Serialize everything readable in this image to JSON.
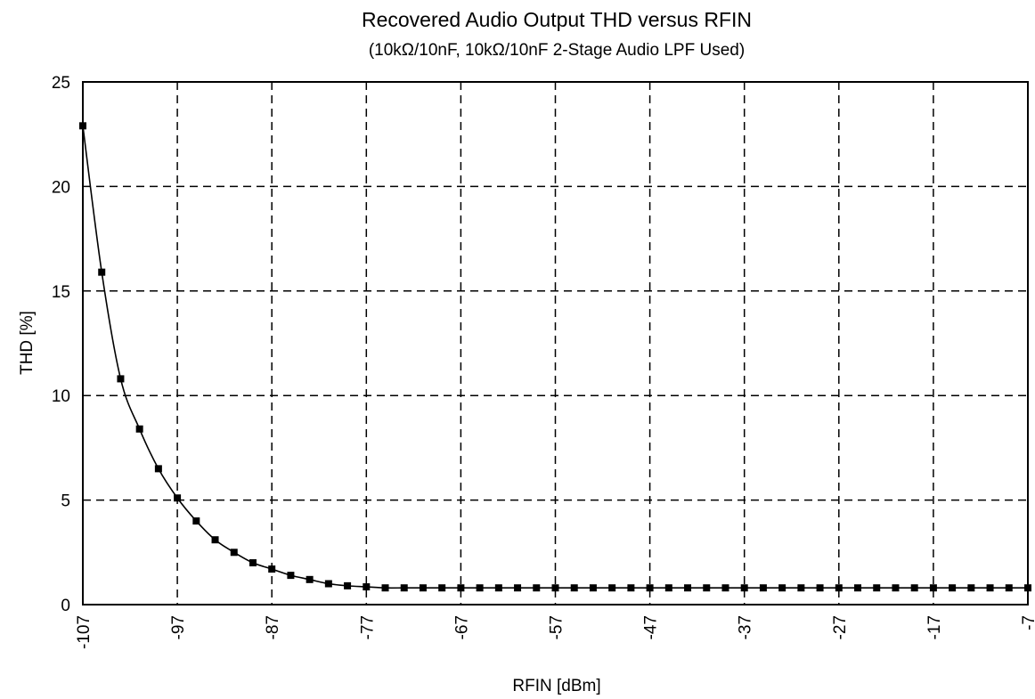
{
  "chart_data": {
    "type": "line",
    "title": "Recovered Audio Output  THD versus RFIN",
    "subtitle": "(10kΩ/10nF, 10kΩ/10nF 2-Stage Audio LPF Used)",
    "xlabel": "RFIN [dBm]",
    "ylabel": "THD [%]",
    "xlim": [
      -107,
      -7
    ],
    "ylim": [
      0,
      25
    ],
    "xticks": [
      -107,
      -97,
      -87,
      -77,
      -67,
      -57,
      -47,
      -37,
      -27,
      -17,
      -7
    ],
    "yticks": [
      0,
      5,
      10,
      15,
      20,
      25
    ],
    "xtick_labels": [
      "-107",
      "-97",
      "-87",
      "-77",
      "-67",
      "-57",
      "-47",
      "-37",
      "-27",
      "-17",
      "-7"
    ],
    "ytick_labels": [
      "0",
      "5",
      "10",
      "15",
      "20",
      "25"
    ],
    "grid": true,
    "legend": "none",
    "series": [
      {
        "x": [
          -107,
          -105,
          -103,
          -101,
          -99,
          -97,
          -95,
          -93,
          -91,
          -89,
          -87,
          -85,
          -83,
          -81,
          -79,
          -77,
          -75,
          -73,
          -71,
          -69,
          -67,
          -65,
          -63,
          -61,
          -59,
          -57,
          -55,
          -53,
          -51,
          -49,
          -47,
          -45,
          -43,
          -41,
          -39,
          -37,
          -35,
          -33,
          -31,
          -29,
          -27,
          -25,
          -23,
          -21,
          -19,
          -17,
          -15,
          -13,
          -11,
          -9,
          -7
        ],
        "y": [
          22.9,
          15.9,
          10.8,
          8.4,
          6.5,
          5.1,
          4.0,
          3.1,
          2.5,
          2.0,
          1.7,
          1.4,
          1.2,
          1.0,
          0.9,
          0.85,
          0.8,
          0.8,
          0.8,
          0.8,
          0.8,
          0.8,
          0.8,
          0.8,
          0.8,
          0.8,
          0.8,
          0.8,
          0.8,
          0.8,
          0.8,
          0.8,
          0.8,
          0.8,
          0.8,
          0.8,
          0.8,
          0.8,
          0.8,
          0.8,
          0.8,
          0.8,
          0.8,
          0.8,
          0.8,
          0.8,
          0.8,
          0.8,
          0.8,
          0.8,
          0.8
        ]
      }
    ]
  }
}
